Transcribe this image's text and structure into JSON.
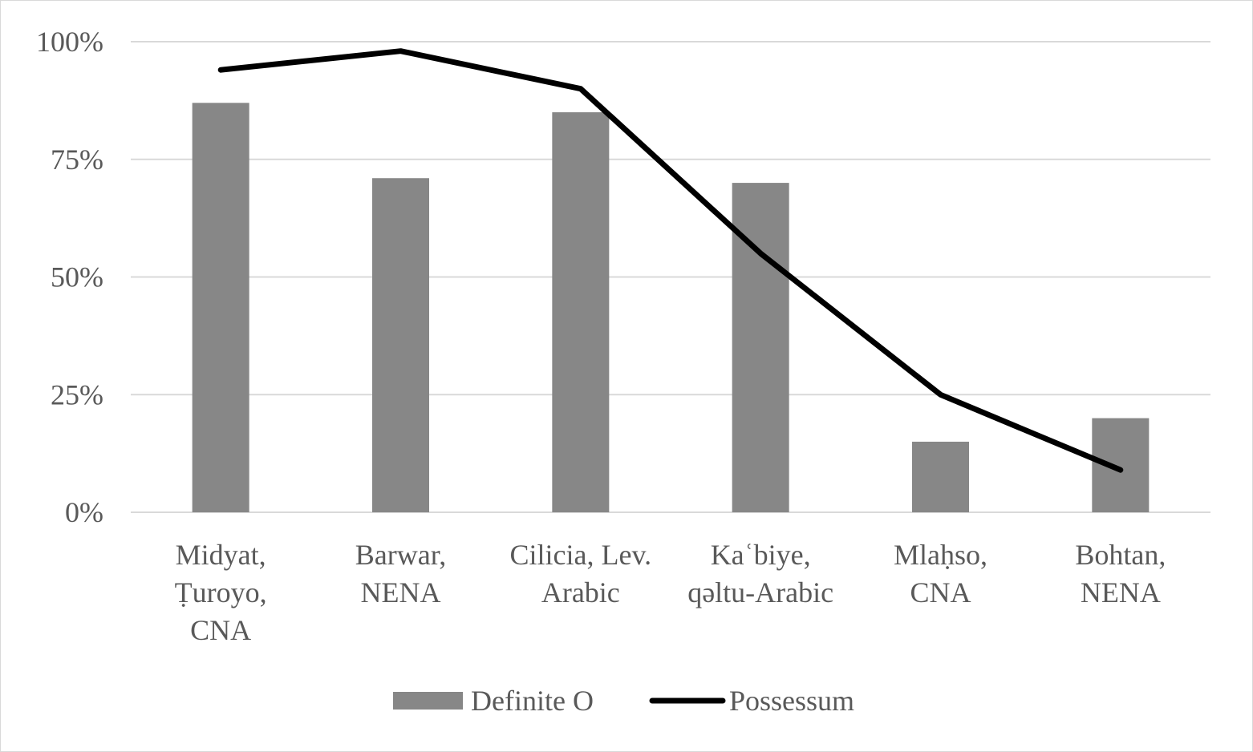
{
  "chart_data": {
    "type": "bar",
    "categories": [
      [
        "Midyat,",
        "Ṭuroyo,",
        "CNA"
      ],
      [
        "Barwar,",
        "NENA"
      ],
      [
        "Cilicia, Lev.",
        "Arabic"
      ],
      [
        "Kaʿbiye,",
        "qəltu-Arabic"
      ],
      [
        "Mlaḥso,",
        "CNA"
      ],
      [
        "Bohtan,",
        "NENA"
      ]
    ],
    "series": [
      {
        "name": "Definite O",
        "type": "bar",
        "color": "#878787",
        "values": [
          87,
          71,
          85,
          70,
          15,
          20
        ]
      },
      {
        "name": "Possessum",
        "type": "line",
        "color": "#000000",
        "values": [
          94,
          98,
          90,
          55,
          25,
          9
        ]
      }
    ],
    "y_ticks": [
      "0%",
      "25%",
      "50%",
      "75%",
      "100%"
    ],
    "ylim": [
      0,
      100
    ],
    "grid": true,
    "legend_position": "bottom"
  }
}
